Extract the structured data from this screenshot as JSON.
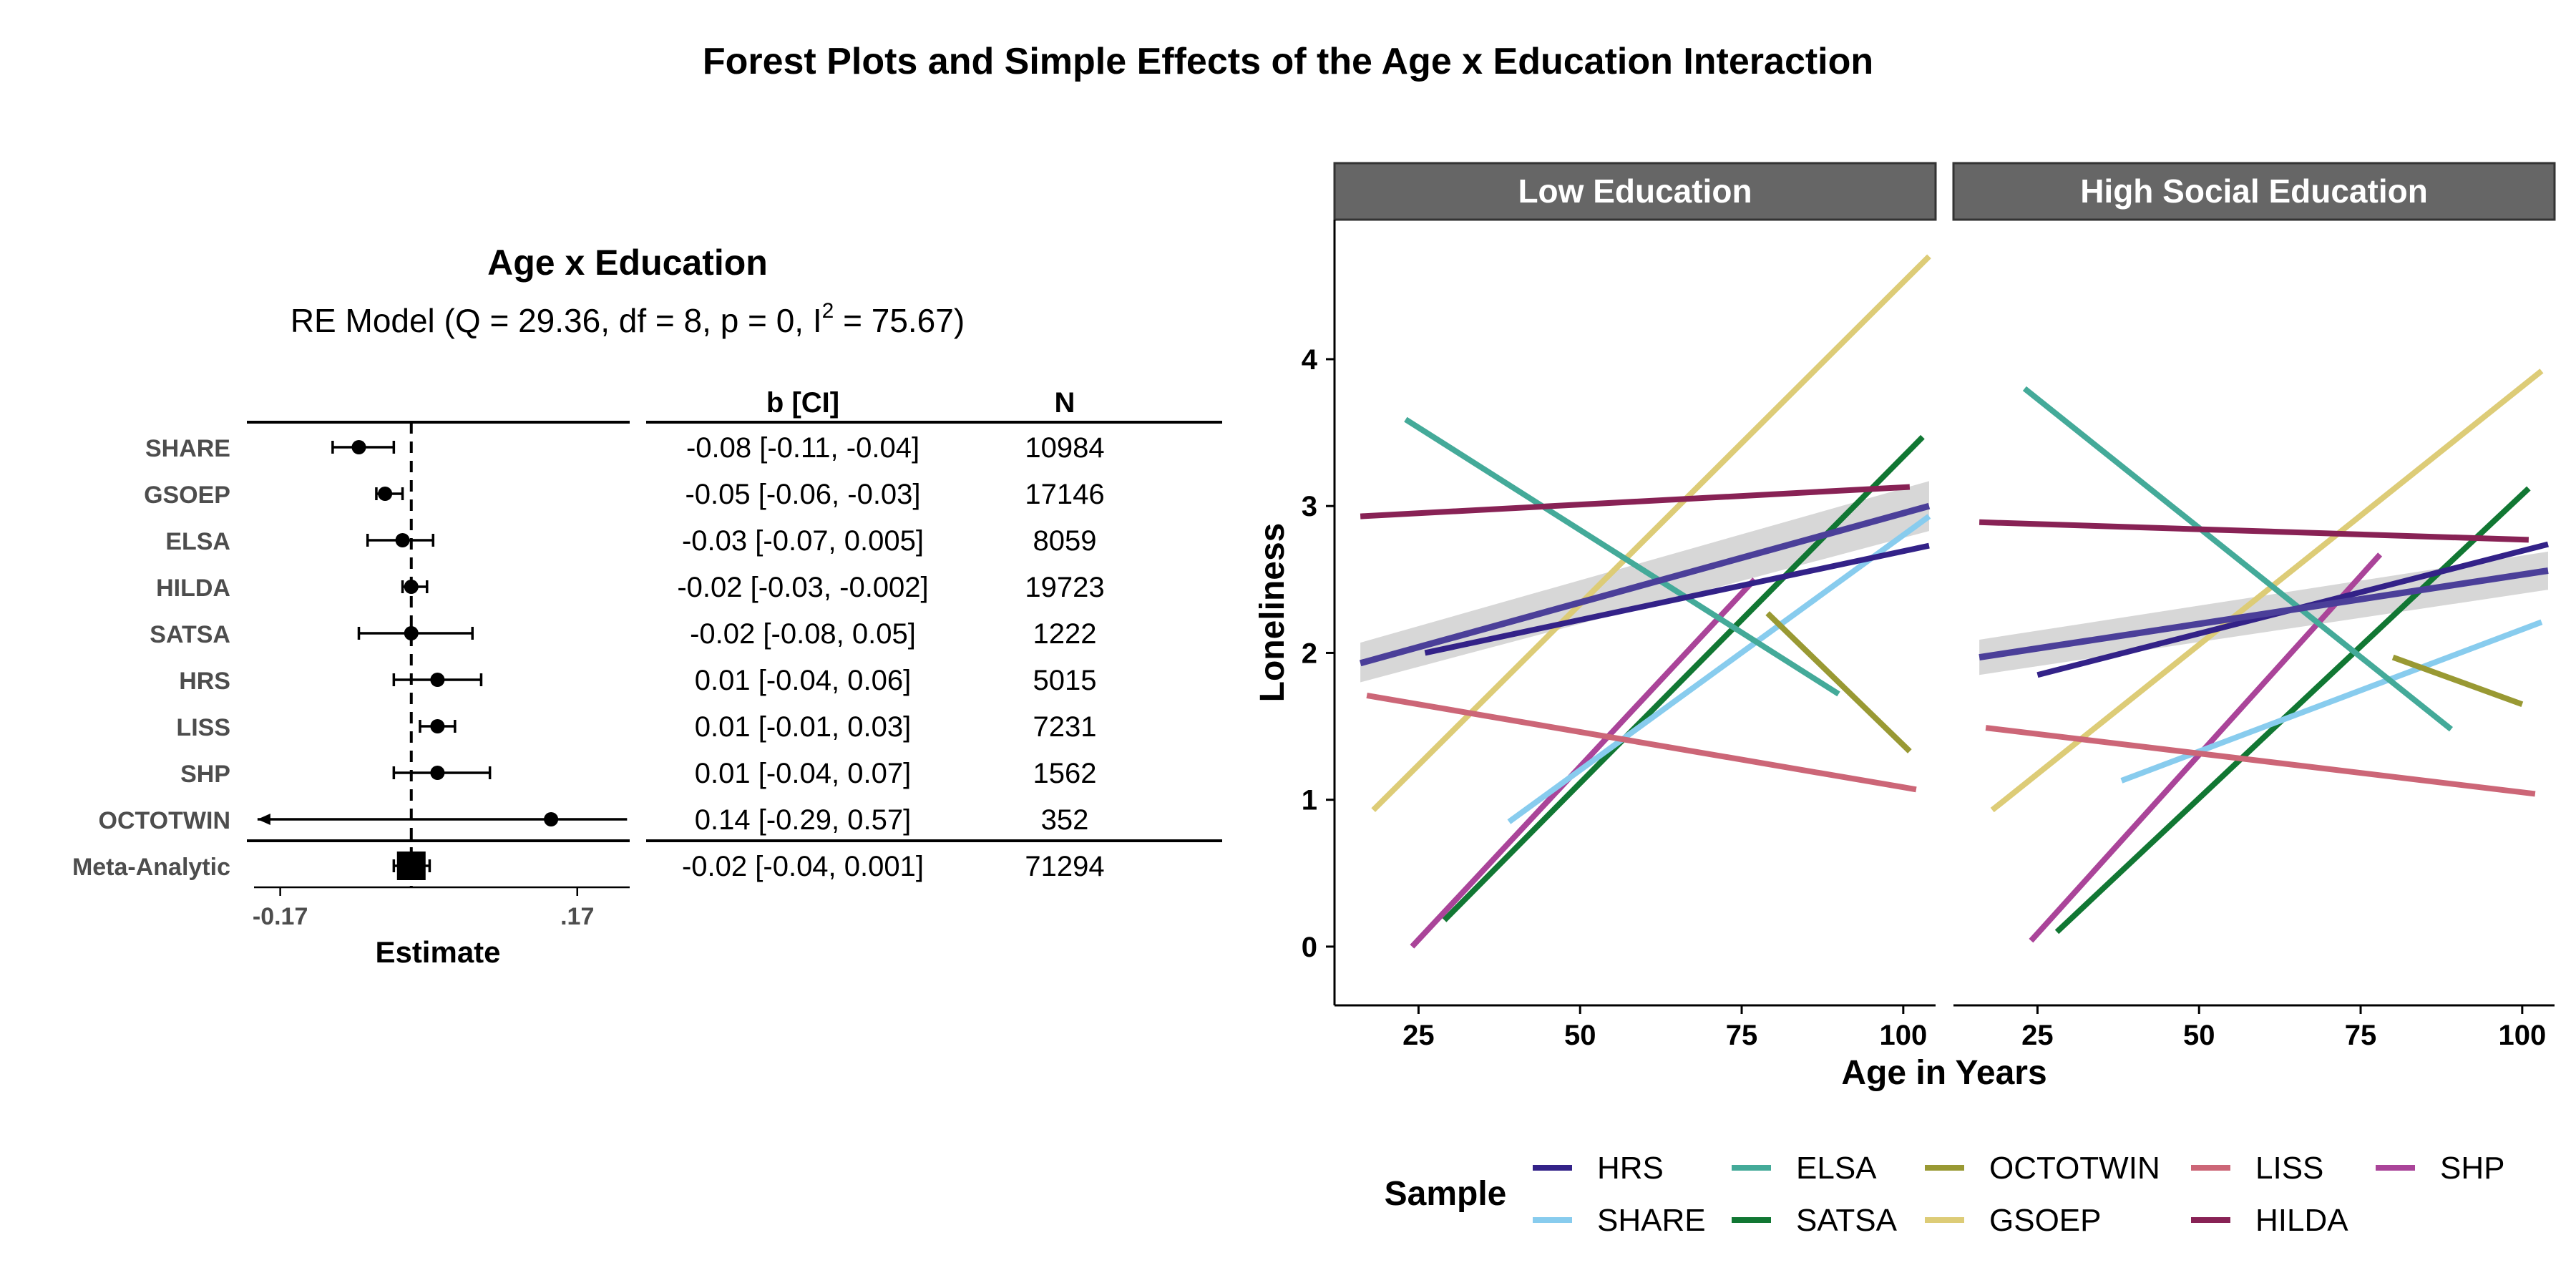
{
  "figure": {
    "title": "Forest Plots and Simple Effects of the Age x Education Interaction"
  },
  "chart_data": [
    {
      "type": "forest",
      "title": "Age x Education",
      "subtitle": {
        "text": "RE Model (Q = 29.36, df = 8, p = 0, I",
        "sup": "2",
        "text_after": " = 75.67)"
      },
      "columns": [
        "b [CI]",
        "N"
      ],
      "xlabel": "Estimate",
      "xticks": [
        {
          "value": -0.17,
          "label": "-0.17"
        },
        {
          "value": 0.17,
          "label": ".17"
        }
      ],
      "xlim": [
        -0.2,
        0.23
      ],
      "reference_line": -0.02,
      "studies": [
        {
          "label": "SHARE",
          "estimate": -0.08,
          "ci_lower": -0.11,
          "ci_upper": -0.04,
          "text": "-0.08 [-0.11, -0.04]",
          "n": "10984"
        },
        {
          "label": "GSOEP",
          "estimate": -0.05,
          "ci_lower": -0.06,
          "ci_upper": -0.03,
          "text": "-0.05 [-0.06, -0.03]",
          "n": "17146"
        },
        {
          "label": "ELSA",
          "estimate": -0.03,
          "ci_lower": -0.07,
          "ci_upper": 0.005,
          "text": "-0.03 [-0.07, 0.005]",
          "n": "8059"
        },
        {
          "label": "HILDA",
          "estimate": -0.02,
          "ci_lower": -0.03,
          "ci_upper": -0.002,
          "text": "-0.02 [-0.03, -0.002]",
          "n": "19723"
        },
        {
          "label": "SATSA",
          "estimate": -0.02,
          "ci_lower": -0.08,
          "ci_upper": 0.05,
          "text": "-0.02 [-0.08, 0.05]",
          "n": "1222"
        },
        {
          "label": "HRS",
          "estimate": 0.01,
          "ci_lower": -0.04,
          "ci_upper": 0.06,
          "text": "0.01 [-0.04, 0.06]",
          "n": "5015"
        },
        {
          "label": "LISS",
          "estimate": 0.01,
          "ci_lower": -0.01,
          "ci_upper": 0.03,
          "text": "0.01 [-0.01, 0.03]",
          "n": "7231"
        },
        {
          "label": "SHP",
          "estimate": 0.01,
          "ci_lower": -0.04,
          "ci_upper": 0.07,
          "text": "0.01 [-0.04, 0.07]",
          "n": "1562"
        },
        {
          "label": "OCTOTWIN",
          "estimate": 0.14,
          "ci_lower": -0.29,
          "ci_upper": 0.57,
          "text": "0.14 [-0.29, 0.57]",
          "n": "352"
        }
      ],
      "summary": {
        "label": "Meta-Analytic",
        "estimate": -0.02,
        "ci_lower": -0.04,
        "ci_upper": 0.001,
        "text": "-0.02 [-0.04, 0.001]",
        "n": "71294"
      }
    },
    {
      "type": "line",
      "xlabel": "Age in Years",
      "ylabel": "Loneliness",
      "xlim": [
        12,
        105
      ],
      "ylim": [
        -0.4,
        4.95
      ],
      "xticks": [
        25,
        50,
        75,
        100
      ],
      "yticks": [
        0,
        1,
        2,
        3,
        4
      ],
      "grid": false,
      "legend": {
        "title": "Sample",
        "position": "bottom",
        "entries": [
          "HRS",
          "SHARE",
          "ELSA",
          "SATSA",
          "OCTOTWIN",
          "GSOEP",
          "LISS",
          "HILDA",
          "SHP"
        ]
      },
      "colors": {
        "HRS": "#332288",
        "SHARE": "#88CCEE",
        "ELSA": "#44AA99",
        "SATSA": "#117733",
        "OCTOTWIN": "#999933",
        "GSOEP": "#DDCC77",
        "LISS": "#CC6677",
        "HILDA": "#882255",
        "SHP": "#AA4499",
        "pooled": "#4B3F99",
        "ribbon": "#d3d3d3"
      },
      "panels": [
        {
          "title": "Low Education",
          "pooled": {
            "x": [
              16,
              104
            ],
            "y": [
              1.93,
              3.0
            ],
            "ci_lower": [
              1.8,
              2.83
            ],
            "ci_upper": [
              2.07,
              3.17
            ]
          },
          "series": [
            {
              "name": "GSOEP",
              "x": [
                18,
                104
              ],
              "y": [
                0.93,
                4.7
              ]
            },
            {
              "name": "SATSA",
              "x": [
                29,
                103
              ],
              "y": [
                0.18,
                3.47
              ]
            },
            {
              "name": "SHP",
              "x": [
                24,
                77
              ],
              "y": [
                0.0,
                2.5
              ]
            },
            {
              "name": "SHARE",
              "x": [
                39,
                104
              ],
              "y": [
                0.85,
                2.93
              ]
            },
            {
              "name": "ELSA",
              "x": [
                23,
                90
              ],
              "y": [
                3.59,
                1.72
              ]
            },
            {
              "name": "OCTOTWIN",
              "x": [
                79,
                101
              ],
              "y": [
                2.27,
                1.33
              ]
            },
            {
              "name": "LISS",
              "x": [
                17,
                102
              ],
              "y": [
                1.71,
                1.07
              ]
            },
            {
              "name": "HRS",
              "x": [
                26,
                104
              ],
              "y": [
                2.0,
                2.73
              ]
            },
            {
              "name": "HILDA",
              "x": [
                16,
                101
              ],
              "y": [
                2.93,
                3.13
              ]
            }
          ]
        },
        {
          "title": "High Social Education",
          "pooled": {
            "x": [
              16,
              104
            ],
            "y": [
              1.97,
              2.56
            ],
            "ci_lower": [
              1.85,
              2.43
            ],
            "ci_upper": [
              2.09,
              2.69
            ]
          },
          "series": [
            {
              "name": "GSOEP",
              "x": [
                18,
                103
              ],
              "y": [
                0.93,
                3.92
              ]
            },
            {
              "name": "SATSA",
              "x": [
                28,
                101
              ],
              "y": [
                0.1,
                3.12
              ]
            },
            {
              "name": "SHP",
              "x": [
                24,
                78
              ],
              "y": [
                0.04,
                2.67
              ]
            },
            {
              "name": "SHARE",
              "x": [
                38,
                103
              ],
              "y": [
                1.13,
                2.21
              ]
            },
            {
              "name": "ELSA",
              "x": [
                23,
                89
              ],
              "y": [
                3.8,
                1.48
              ]
            },
            {
              "name": "OCTOTWIN",
              "x": [
                80,
                100
              ],
              "y": [
                1.97,
                1.65
              ]
            },
            {
              "name": "LISS",
              "x": [
                17,
                102
              ],
              "y": [
                1.49,
                1.04
              ]
            },
            {
              "name": "HRS",
              "x": [
                25,
                104
              ],
              "y": [
                1.85,
                2.74
              ]
            },
            {
              "name": "HILDA",
              "x": [
                16,
                101
              ],
              "y": [
                2.89,
                2.77
              ]
            }
          ]
        }
      ]
    }
  ]
}
